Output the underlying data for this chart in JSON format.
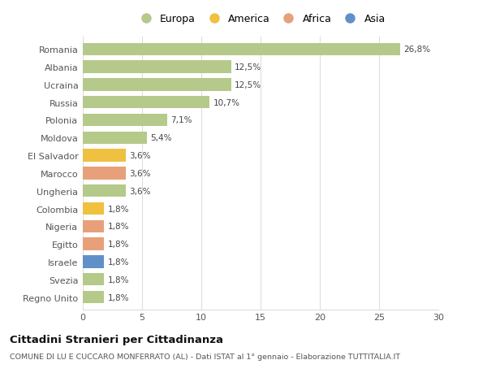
{
  "countries": [
    "Romania",
    "Albania",
    "Ucraina",
    "Russia",
    "Polonia",
    "Moldova",
    "El Salvador",
    "Marocco",
    "Ungheria",
    "Colombia",
    "Nigeria",
    "Egitto",
    "Israele",
    "Svezia",
    "Regno Unito"
  ],
  "values": [
    26.8,
    12.5,
    12.5,
    10.7,
    7.1,
    5.4,
    3.6,
    3.6,
    3.6,
    1.8,
    1.8,
    1.8,
    1.8,
    1.8,
    1.8
  ],
  "labels": [
    "26,8%",
    "12,5%",
    "12,5%",
    "10,7%",
    "7,1%",
    "5,4%",
    "3,6%",
    "3,6%",
    "3,6%",
    "1,8%",
    "1,8%",
    "1,8%",
    "1,8%",
    "1,8%",
    "1,8%"
  ],
  "colors": [
    "#b5c98a",
    "#b5c98a",
    "#b5c98a",
    "#b5c98a",
    "#b5c98a",
    "#b5c98a",
    "#f0c040",
    "#e8a07a",
    "#b5c98a",
    "#f0c040",
    "#e8a07a",
    "#e8a07a",
    "#6090c8",
    "#b5c98a",
    "#b5c98a"
  ],
  "legend_labels": [
    "Europa",
    "America",
    "Africa",
    "Asia"
  ],
  "legend_colors": [
    "#b5c98a",
    "#f0c040",
    "#e8a07a",
    "#6090c8"
  ],
  "title": "Cittadini Stranieri per Cittadinanza",
  "subtitle": "COMUNE DI LU E CUCCARO MONFERRATO (AL) - Dati ISTAT al 1° gennaio - Elaborazione TUTTITALIA.IT",
  "xlim": [
    0,
    30
  ],
  "xticks": [
    0,
    5,
    10,
    15,
    20,
    25,
    30
  ],
  "bg_color": "#ffffff",
  "grid_color": "#dddddd"
}
